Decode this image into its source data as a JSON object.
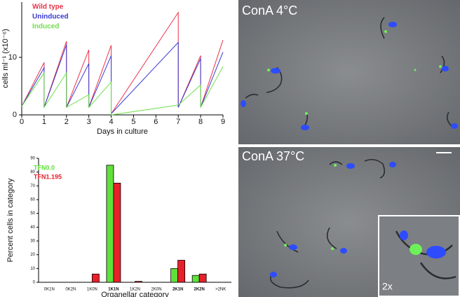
{
  "chart_data": [
    {
      "type": "line",
      "xlabel": "Days in culture",
      "ylabel": "cells ml⁻¹ (x10⁻⁶)",
      "x": [
        0,
        1,
        1,
        2,
        2,
        3,
        3,
        4,
        4,
        7,
        7,
        8,
        8,
        9
      ],
      "series": [
        {
          "name": "Wild type",
          "color": "#e8344a",
          "values": [
            1.5,
            9.1,
            1.3,
            12.8,
            1.3,
            11.3,
            1.3,
            12.1,
            0.2,
            17.8,
            1.3,
            10.3,
            1.3,
            13
          ]
        },
        {
          "name": "Uninduced",
          "color": "#3a3ad0",
          "values": [
            1.5,
            8.2,
            1.3,
            12.2,
            1.3,
            8.9,
            1.3,
            10.3,
            0.2,
            12.6,
            1.3,
            9.8,
            1.3,
            10.9
          ]
        },
        {
          "name": "Induced",
          "color": "#6ee04a",
          "values": [
            1.5,
            7.3,
            1.3,
            7.3,
            1.3,
            3.5,
            1.3,
            5.7,
            0,
            1.7,
            1.7,
            5.2,
            1.3,
            8.4
          ]
        }
      ],
      "xlim": [
        0,
        9
      ],
      "xticks": [
        0,
        1,
        2,
        3,
        4,
        5,
        6,
        7,
        8,
        9
      ],
      "ylim": [
        0,
        19.6
      ],
      "yticks": [
        0,
        10
      ]
    },
    {
      "type": "bar",
      "xlabel": "Organellar category",
      "ylabel": "Percent cells in category",
      "categories": [
        "0K1N",
        "0K2N",
        "1K0N",
        "1K1N",
        "1K2N",
        "2K0N",
        "2K1N",
        "2K2N",
        ">2NK"
      ],
      "category_bold": [
        false,
        false,
        false,
        true,
        false,
        false,
        true,
        true,
        false
      ],
      "series": [
        {
          "name": "TFN0.0",
          "color": "#5fe03a",
          "values": [
            0,
            0,
            0,
            85,
            0,
            0,
            10,
            5,
            0
          ]
        },
        {
          "name": "TFN1.195",
          "color": "#e8202a",
          "values": [
            0,
            0,
            6,
            72,
            0.7,
            0,
            16,
            6,
            0
          ]
        }
      ],
      "ylim": [
        0,
        90
      ],
      "yticks": [
        0,
        10,
        20,
        30,
        40,
        50,
        60,
        70,
        80,
        90
      ]
    }
  ],
  "images": [
    {
      "label": "ConA 4°C"
    },
    {
      "label": "ConA 37°C"
    }
  ],
  "inset_label": "2x"
}
